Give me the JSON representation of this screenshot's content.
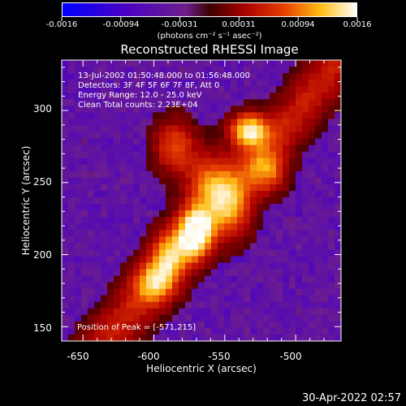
{
  "colorbar": {
    "ticks": [
      "-0.0016",
      "-0.00094",
      "-0.00031",
      "0.00031",
      "0.00094",
      "0.0016"
    ],
    "units_label": "(photons cm⁻² s⁻¹ asec⁻²)"
  },
  "chart_data": {
    "type": "heatmap",
    "title": "Reconstructed RHESSI Image",
    "xlabel": "Heliocentric X (arcsec)",
    "ylabel": "Heliocentric Y (arcsec)",
    "xlim": [
      -665,
      -468
    ],
    "ylim": [
      140,
      335
    ],
    "xticks": [
      -650,
      -600,
      -550,
      -500
    ],
    "yticks": [
      150,
      200,
      250,
      300
    ],
    "color_range": [
      -0.0016,
      0.0016
    ],
    "colormap": "blue-purple-red-yellow-white",
    "peaks": [
      {
        "x": -571,
        "y": 215,
        "rel": 1.0,
        "sx": 8,
        "sy": 12
      },
      {
        "x": -533,
        "y": 286,
        "rel": 0.92,
        "sx": 9,
        "sy": 8
      },
      {
        "x": -600,
        "y": 180,
        "rel": 0.55,
        "sx": 10,
        "sy": 10
      },
      {
        "x": -560,
        "y": 250,
        "rel": 0.55,
        "sx": 12,
        "sy": 14
      },
      {
        "x": -520,
        "y": 258,
        "rel": 0.5,
        "sx": 9,
        "sy": 10
      },
      {
        "x": -585,
        "y": 275,
        "rel": 0.5,
        "sx": 10,
        "sy": 12
      },
      {
        "x": -545,
        "y": 230,
        "rel": 0.45,
        "sx": 10,
        "sy": 14
      },
      {
        "x": -590,
        "y": 200,
        "rel": 0.55,
        "sx": 8,
        "sy": 12
      }
    ]
  },
  "info": {
    "time_range": "13-Jul-2002 01:50:48.000 to 01:56:48.000",
    "detectors": "Detectors: 3F 4F 5F 6F 7F 8F, Att 0",
    "energy_range": "Energy Range: 12.0 - 25.0 keV",
    "method_counts": "Clean     Total counts: 2.23E+04",
    "peak_position": "Position of Peak = [-571,215]"
  },
  "footer": {
    "timestamp": "30-Apr-2022 02:57"
  }
}
